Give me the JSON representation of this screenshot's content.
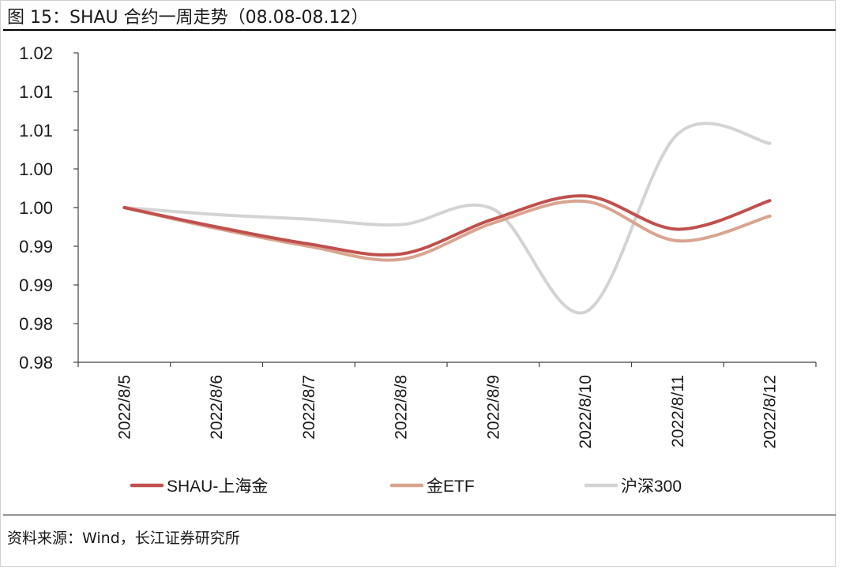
{
  "title": "图 15：SHAU 合约一周走势（08.08-08.12）",
  "source": "资料来源：Wind，长江证券研究所",
  "colors": {
    "shau": "#C0504D",
    "etf": "#D9A490",
    "hs300": "#D3D3D3",
    "axis": "#444444"
  },
  "chart_data": {
    "type": "line",
    "title": "",
    "xlabel": "",
    "ylabel": "",
    "categories": [
      "2022/8/5",
      "2022/8/6",
      "2022/8/7",
      "2022/8/8",
      "2022/8/9",
      "2022/8/10",
      "2022/8/11",
      "2022/8/12"
    ],
    "ylim": [
      0.98,
      1.02
    ],
    "y_ticks": [
      0.98,
      0.985,
      0.99,
      0.995,
      1.0,
      1.005,
      1.01,
      1.015,
      1.02
    ],
    "y_tick_labels": [
      "0.98",
      "0.98",
      "0.99",
      "0.99",
      "1.00",
      "1.00",
      "1.01",
      "1.01",
      "1.02"
    ],
    "grid": false,
    "legend_position": "bottom",
    "series": [
      {
        "name": "SHAU-上海金",
        "color_key": "shau",
        "values": [
          1.0,
          0.9975,
          0.9953,
          0.994,
          0.9985,
          1.0015,
          0.9972,
          1.0009
        ]
      },
      {
        "name": "金ETF",
        "color_key": "etf",
        "values": [
          1.0,
          0.9973,
          0.995,
          0.9933,
          0.998,
          1.0008,
          0.9957,
          0.9989
        ]
      },
      {
        "name": "沪深300",
        "color_key": "hs300",
        "values": [
          1.0,
          0.9991,
          0.9985,
          0.9978,
          0.9998,
          0.9865,
          1.0095,
          1.0083
        ]
      }
    ]
  }
}
